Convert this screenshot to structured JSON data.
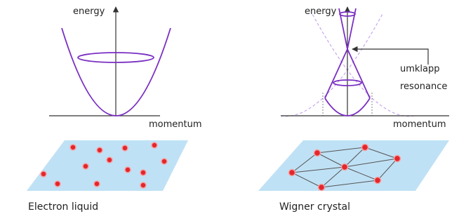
{
  "panels": [
    {
      "energy_label": "energy",
      "momentum_label": "momentum",
      "caption": "Electron liquid"
    },
    {
      "energy_label": "energy",
      "momentum_label": "momentum",
      "annotation": [
        "umklapp",
        "resonance"
      ],
      "caption": "Wigner crystal"
    }
  ]
}
